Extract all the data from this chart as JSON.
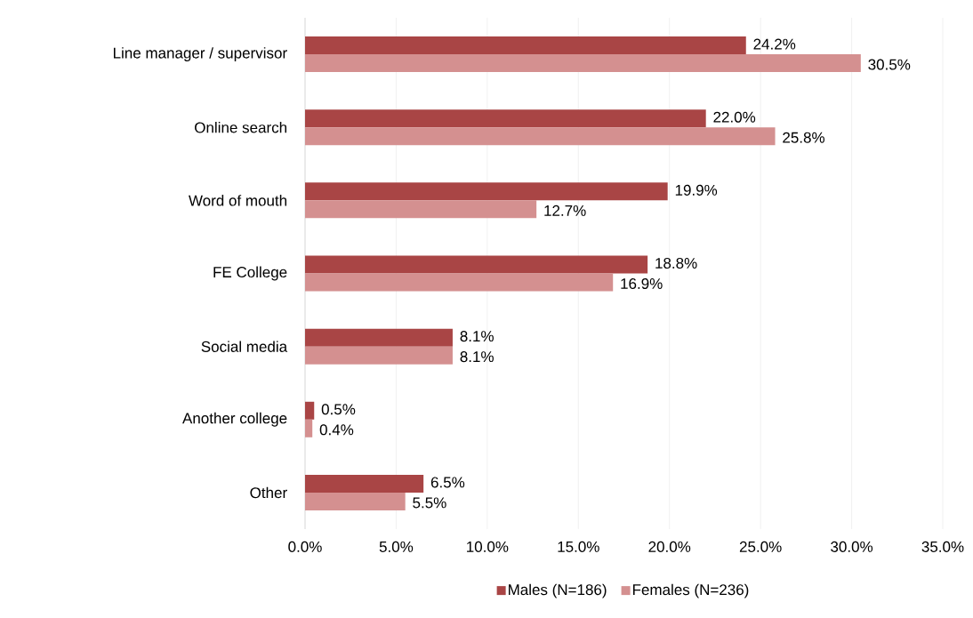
{
  "chart_data": {
    "type": "bar",
    "orientation": "horizontal",
    "categories": [
      "Line manager / supervisor",
      "Online search",
      "Word of mouth",
      "FE College",
      "Social media",
      "Another college",
      "Other"
    ],
    "series": [
      {
        "name": "Males (N=186)",
        "color": "#a94545",
        "values": [
          24.2,
          22.0,
          19.9,
          18.8,
          8.1,
          0.5,
          6.5
        ],
        "value_labels": [
          "24.2%",
          "22.0%",
          "19.9%",
          "18.8%",
          "8.1%",
          "0.5%",
          "6.5%"
        ]
      },
      {
        "name": "Females (N=236)",
        "color": "#d49090",
        "values": [
          30.5,
          25.8,
          12.7,
          16.9,
          8.1,
          0.4,
          5.5
        ],
        "value_labels": [
          "30.5%",
          "25.8%",
          "12.7%",
          "16.9%",
          "8.1%",
          "0.4%",
          "5.5%"
        ]
      }
    ],
    "xlim": [
      0,
      35
    ],
    "xticks": [
      {
        "value": 0,
        "label": "0.0%"
      },
      {
        "value": 5,
        "label": "5.0%"
      },
      {
        "value": 10,
        "label": "10.0%"
      },
      {
        "value": 15,
        "label": "15.0%"
      },
      {
        "value": 20,
        "label": "20.0%"
      },
      {
        "value": 25,
        "label": "25.0%"
      },
      {
        "value": 30,
        "label": "30.0%"
      },
      {
        "value": 35,
        "label": "35.0%"
      }
    ],
    "grid": "x",
    "legend": "bottom"
  }
}
